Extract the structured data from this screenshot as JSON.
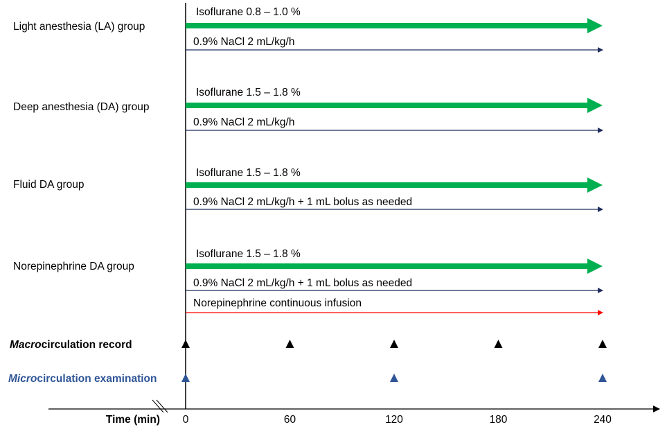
{
  "colors": {
    "isoflurane_arrow": "#00b050",
    "nacl_arrow": "#1f2d5c",
    "norepinephrine_arrow": "#ff0000",
    "macro_marker": "#000000",
    "micro_marker": "#2f5597"
  },
  "groups": [
    {
      "label": "Light anesthesia (LA) group",
      "isoflurane": "Isoflurane 0.8 – 1.0 %",
      "fluid": "0.9% NaCl 2 mL/kg/h"
    },
    {
      "label": "Deep anesthesia (DA) group",
      "isoflurane": "Isoflurane 1.5 – 1.8 %",
      "fluid": "0.9% NaCl 2 mL/kg/h"
    },
    {
      "label": "Fluid DA group",
      "isoflurane": "Isoflurane 1.5 – 1.8 %",
      "fluid": "0.9% NaCl 2 mL/kg/h + 1 mL bolus as needed"
    },
    {
      "label": "Norepinephrine DA group",
      "isoflurane": "Isoflurane 1.5 – 1.8 %",
      "fluid": "0.9% NaCl 2 mL/kg/h + 1 mL bolus as needed",
      "vasopressor": "Norepinephrine continuous infusion"
    }
  ],
  "macro": {
    "label_italic": "Macro",
    "label_rest": "circulation record",
    "times": [
      0,
      60,
      120,
      180,
      240
    ]
  },
  "micro": {
    "label_italic": "Micro",
    "label_rest": "circulation examination",
    "times": [
      0,
      120,
      240
    ]
  },
  "axis": {
    "title": "Time (min)",
    "ticks": [
      "0",
      "60",
      "120",
      "180",
      "240"
    ]
  }
}
